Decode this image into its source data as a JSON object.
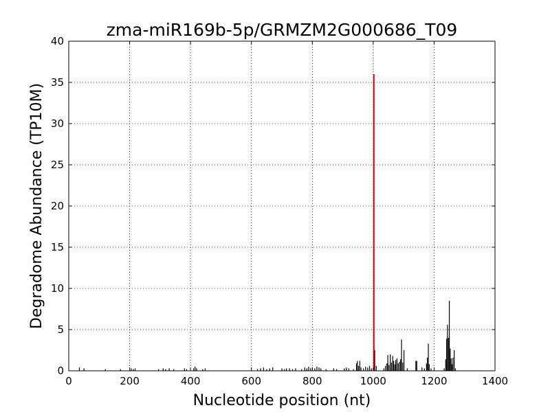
{
  "chart_data": {
    "type": "bar",
    "title": "zma-miR169b-5p/GRMZM2G000686_T09",
    "xlabel": "Nucleotide position (nt)",
    "ylabel": "Degradome Abundance (TP10M)",
    "xlim": [
      0,
      1400
    ],
    "ylim": [
      0,
      40
    ],
    "xticks": [
      0,
      200,
      400,
      600,
      800,
      1000,
      1200,
      1400
    ],
    "yticks": [
      0,
      5,
      10,
      15,
      20,
      25,
      30,
      35,
      40
    ],
    "grid": true,
    "grid_style": "dotted",
    "series": [
      {
        "color": "#000000",
        "points": [
          [
            35,
            0.4
          ],
          [
            50,
            0.3
          ],
          [
            120,
            0.2
          ],
          [
            170,
            0.2
          ],
          [
            205,
            0.3
          ],
          [
            212,
            0.2
          ],
          [
            218,
            0.3
          ],
          [
            295,
            0.2
          ],
          [
            310,
            0.3
          ],
          [
            318,
            0.2
          ],
          [
            330,
            0.3
          ],
          [
            345,
            0.2
          ],
          [
            380,
            0.3
          ],
          [
            387,
            0.2
          ],
          [
            410,
            0.3
          ],
          [
            415,
            0.5
          ],
          [
            420,
            0.3
          ],
          [
            440,
            0.2
          ],
          [
            448,
            0.3
          ],
          [
            620,
            0.2
          ],
          [
            630,
            0.3
          ],
          [
            640,
            0.4
          ],
          [
            650,
            0.2
          ],
          [
            660,
            0.3
          ],
          [
            670,
            0.4
          ],
          [
            700,
            0.3
          ],
          [
            708,
            0.2
          ],
          [
            715,
            0.3
          ],
          [
            725,
            0.3
          ],
          [
            735,
            0.2
          ],
          [
            745,
            0.3
          ],
          [
            765,
            0.2
          ],
          [
            775,
            0.4
          ],
          [
            782,
            0.3
          ],
          [
            788,
            0.5
          ],
          [
            794,
            0.3
          ],
          [
            800,
            0.4
          ],
          [
            808,
            0.3
          ],
          [
            815,
            0.5
          ],
          [
            822,
            0.4
          ],
          [
            828,
            0.3
          ],
          [
            845,
            0.2
          ],
          [
            870,
            0.3
          ],
          [
            880,
            0.2
          ],
          [
            905,
            0.3
          ],
          [
            912,
            0.4
          ],
          [
            920,
            0.3
          ],
          [
            935,
            0.2
          ],
          [
            945,
            0.9
          ],
          [
            948,
            1.2
          ],
          [
            952,
            0.6
          ],
          [
            956,
            1.2
          ],
          [
            960,
            0.4
          ],
          [
            968,
            0.3
          ],
          [
            975,
            0.5
          ],
          [
            982,
            0.4
          ],
          [
            988,
            0.6
          ],
          [
            994,
            0.3
          ],
          [
            1005,
            2.5
          ],
          [
            1010,
            0.6
          ],
          [
            1035,
            0.3
          ],
          [
            1040,
            0.6
          ],
          [
            1045,
            0.9
          ],
          [
            1048,
            1.9
          ],
          [
            1052,
            0.7
          ],
          [
            1056,
            2.0
          ],
          [
            1060,
            1.0
          ],
          [
            1064,
            1.8
          ],
          [
            1067,
            1.2
          ],
          [
            1071,
            0.8
          ],
          [
            1074,
            1.3
          ],
          [
            1078,
            1.5
          ],
          [
            1082,
            0.9
          ],
          [
            1086,
            1.1
          ],
          [
            1090,
            1.4
          ],
          [
            1093,
            3.8
          ],
          [
            1097,
            1.0
          ],
          [
            1101,
            2.5
          ],
          [
            1112,
            0.3
          ],
          [
            1140,
            1.2
          ],
          [
            1143,
            1.2
          ],
          [
            1160,
            0.4
          ],
          [
            1168,
            0.3
          ],
          [
            1175,
            0.9
          ],
          [
            1178,
            1.6
          ],
          [
            1181,
            3.3
          ],
          [
            1184,
            0.8
          ],
          [
            1190,
            0.3
          ],
          [
            1233,
            0.3
          ],
          [
            1238,
            1.4
          ],
          [
            1241,
            3.9
          ],
          [
            1244,
            5.6
          ],
          [
            1247,
            4.0
          ],
          [
            1250,
            8.5
          ],
          [
            1253,
            2.7
          ],
          [
            1256,
            1.5
          ],
          [
            1259,
            0.8
          ],
          [
            1262,
            1.6
          ],
          [
            1266,
            2.5
          ],
          [
            1270,
            0.3
          ]
        ]
      },
      {
        "color": "#cc0000",
        "points": [
          [
            1002,
            36
          ]
        ]
      }
    ]
  }
}
